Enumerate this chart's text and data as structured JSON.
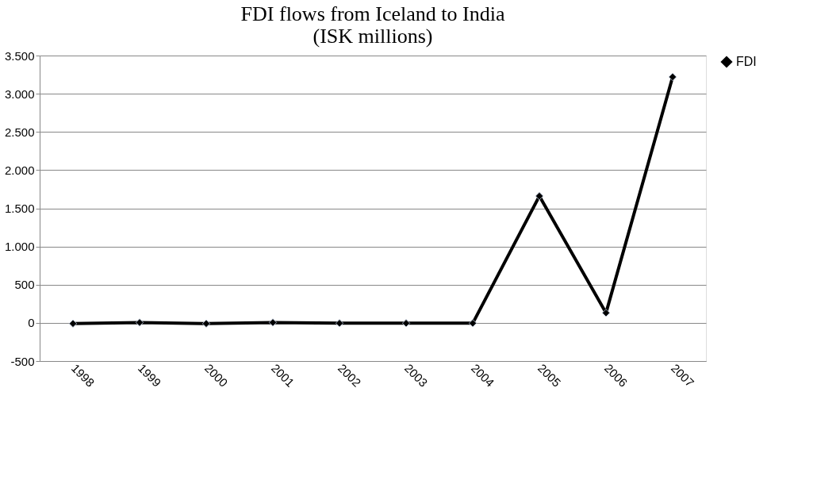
{
  "chart_data": {
    "type": "line",
    "title": [
      "FDI flows from Iceland to India",
      "(ISK millions)"
    ],
    "categories": [
      "1998",
      "1999",
      "2000",
      "2001",
      "2002",
      "2003",
      "2004",
      "2005",
      "2006",
      "2007"
    ],
    "series": [
      {
        "name": "FDI",
        "color": "#000000",
        "values": [
          -10,
          5,
          -10,
          5,
          -5,
          -5,
          -5,
          1660,
          130,
          3220
        ]
      }
    ],
    "ylim": [
      -500,
      3500
    ],
    "yticks": [
      {
        "value": -500,
        "label": "-500"
      },
      0,
      500,
      {
        "value": 1000,
        "label": "1.000"
      },
      {
        "value": 1500,
        "label": "1.500"
      },
      {
        "value": 2000,
        "label": "2.000"
      },
      {
        "value": 2500,
        "label": "2.500"
      },
      {
        "value": 3000,
        "label": "3.000"
      },
      {
        "value": 3500,
        "label": "3.500"
      }
    ],
    "grid": "y",
    "legend": "right",
    "marker": "diamond",
    "line_style": "solid"
  }
}
